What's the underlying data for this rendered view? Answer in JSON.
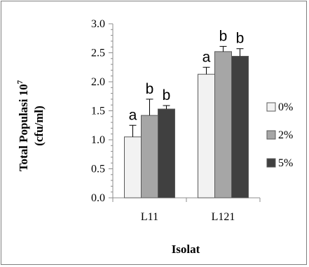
{
  "chart_data": {
    "type": "bar",
    "title": "",
    "xlabel": "Isolat",
    "ylabel_parts": {
      "line1_prefix": "Total Populasi 10",
      "line1_superscript": "7",
      "line2": "(cfu/ml)"
    },
    "ylim": [
      0,
      3.0
    ],
    "ytick_labels": [
      "0.0",
      "0.5",
      "1.0",
      "1.5",
      "2.0",
      "2.5",
      "3.0"
    ],
    "yticks": [
      0,
      0.5,
      1.0,
      1.5,
      2.0,
      2.5,
      3.0
    ],
    "categories": [
      "L11",
      "L121"
    ],
    "series": [
      {
        "name": "0%",
        "color": "#f2f2f2",
        "values": [
          1.05,
          2.13
        ],
        "errors": [
          0.2,
          0.12
        ],
        "letters": [
          "a",
          "a"
        ]
      },
      {
        "name": "2%",
        "color": "#a6a6a6",
        "values": [
          1.42,
          2.52
        ],
        "errors": [
          0.28,
          0.09
        ],
        "letters": [
          "b",
          "b"
        ]
      },
      {
        "name": "5%",
        "color": "#404040",
        "values": [
          1.53,
          2.44
        ],
        "errors": [
          0.06,
          0.13
        ],
        "letters": [
          "b",
          "b"
        ]
      }
    ],
    "grid": false,
    "legend_position": "right"
  }
}
